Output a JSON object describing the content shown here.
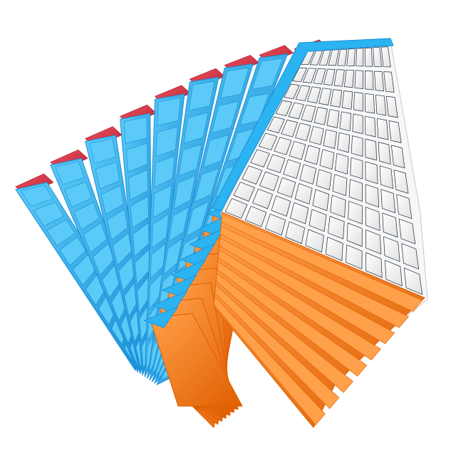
{
  "image": {
    "subject": "puzzle-cube",
    "layers": 10,
    "colors": {
      "background": "#ffffff",
      "blue": "#2bb3f2",
      "blue_dark": "#1a8fd6",
      "blue_light": "#5ccaf8",
      "red": "#e0384a",
      "red_dark": "#b82637",
      "orange": "#ff7f12",
      "orange_dark": "#e05e00",
      "orange_light": "#ffa04a",
      "white": "#f7f7f7",
      "white_shade": "#e4e4e4",
      "gap": "#1c2a3a"
    }
  }
}
